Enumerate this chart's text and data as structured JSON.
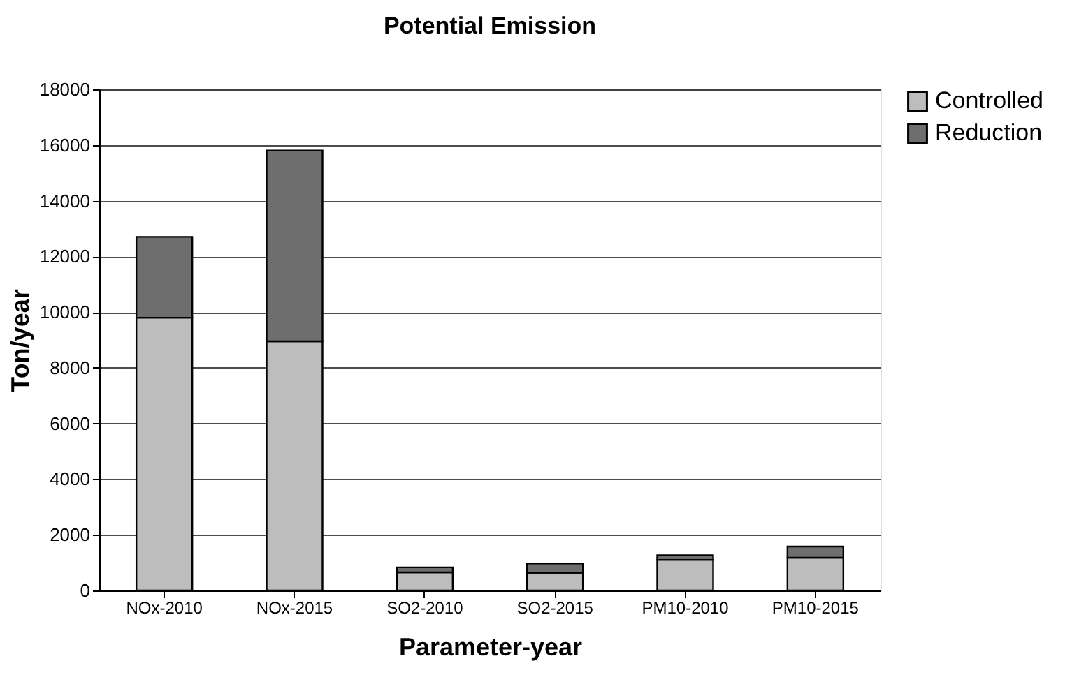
{
  "chart_data": {
    "type": "bar",
    "title": "Potential Emission",
    "xlabel": "Parameter-year",
    "ylabel": "Ton/year",
    "categories": [
      "NOx-2010",
      "NOx-2015",
      "SO2-2010",
      "SO2-2015",
      "PM10-2010",
      "PM10-2015"
    ],
    "stacked": true,
    "series": [
      {
        "name": "Controlled",
        "color": "#bdbdbd",
        "values": [
          9800,
          8950,
          650,
          640,
          1100,
          1180
        ]
      },
      {
        "name": "Reduction",
        "color": "#6e6e6e",
        "values": [
          2900,
          6850,
          180,
          330,
          170,
          400
        ]
      }
    ],
    "ylim": [
      0,
      18000
    ],
    "yticks": [
      0,
      2000,
      4000,
      6000,
      8000,
      10000,
      12000,
      14000,
      16000,
      18000
    ],
    "grid": "y",
    "legend": "right"
  }
}
